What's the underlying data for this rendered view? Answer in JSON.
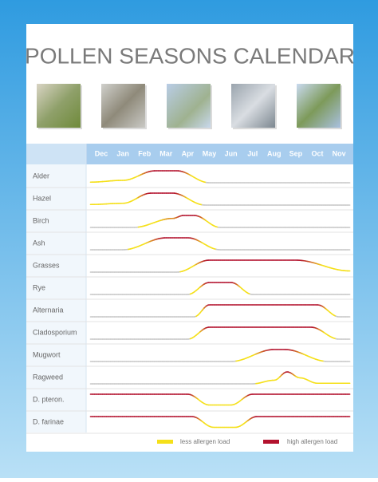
{
  "header": {
    "title": "POLLEN SEASONS CALENDAR"
  },
  "months": [
    "Dec",
    "Jan",
    "Feb",
    "Mar",
    "Apr",
    "May",
    "Jun",
    "Jul",
    "Aug",
    "Sep",
    "Oct",
    "Nov"
  ],
  "rows": [
    "Alder",
    "Hazel",
    "Birch",
    "Ash",
    "Grasses",
    "Rye",
    "Alternaria",
    "Cladosporium",
    "Mugwort",
    "Ragweed",
    "D. pteron.",
    "D. farinae"
  ],
  "legend": {
    "low": "less allergen load",
    "high": "high allergen load"
  }
}
